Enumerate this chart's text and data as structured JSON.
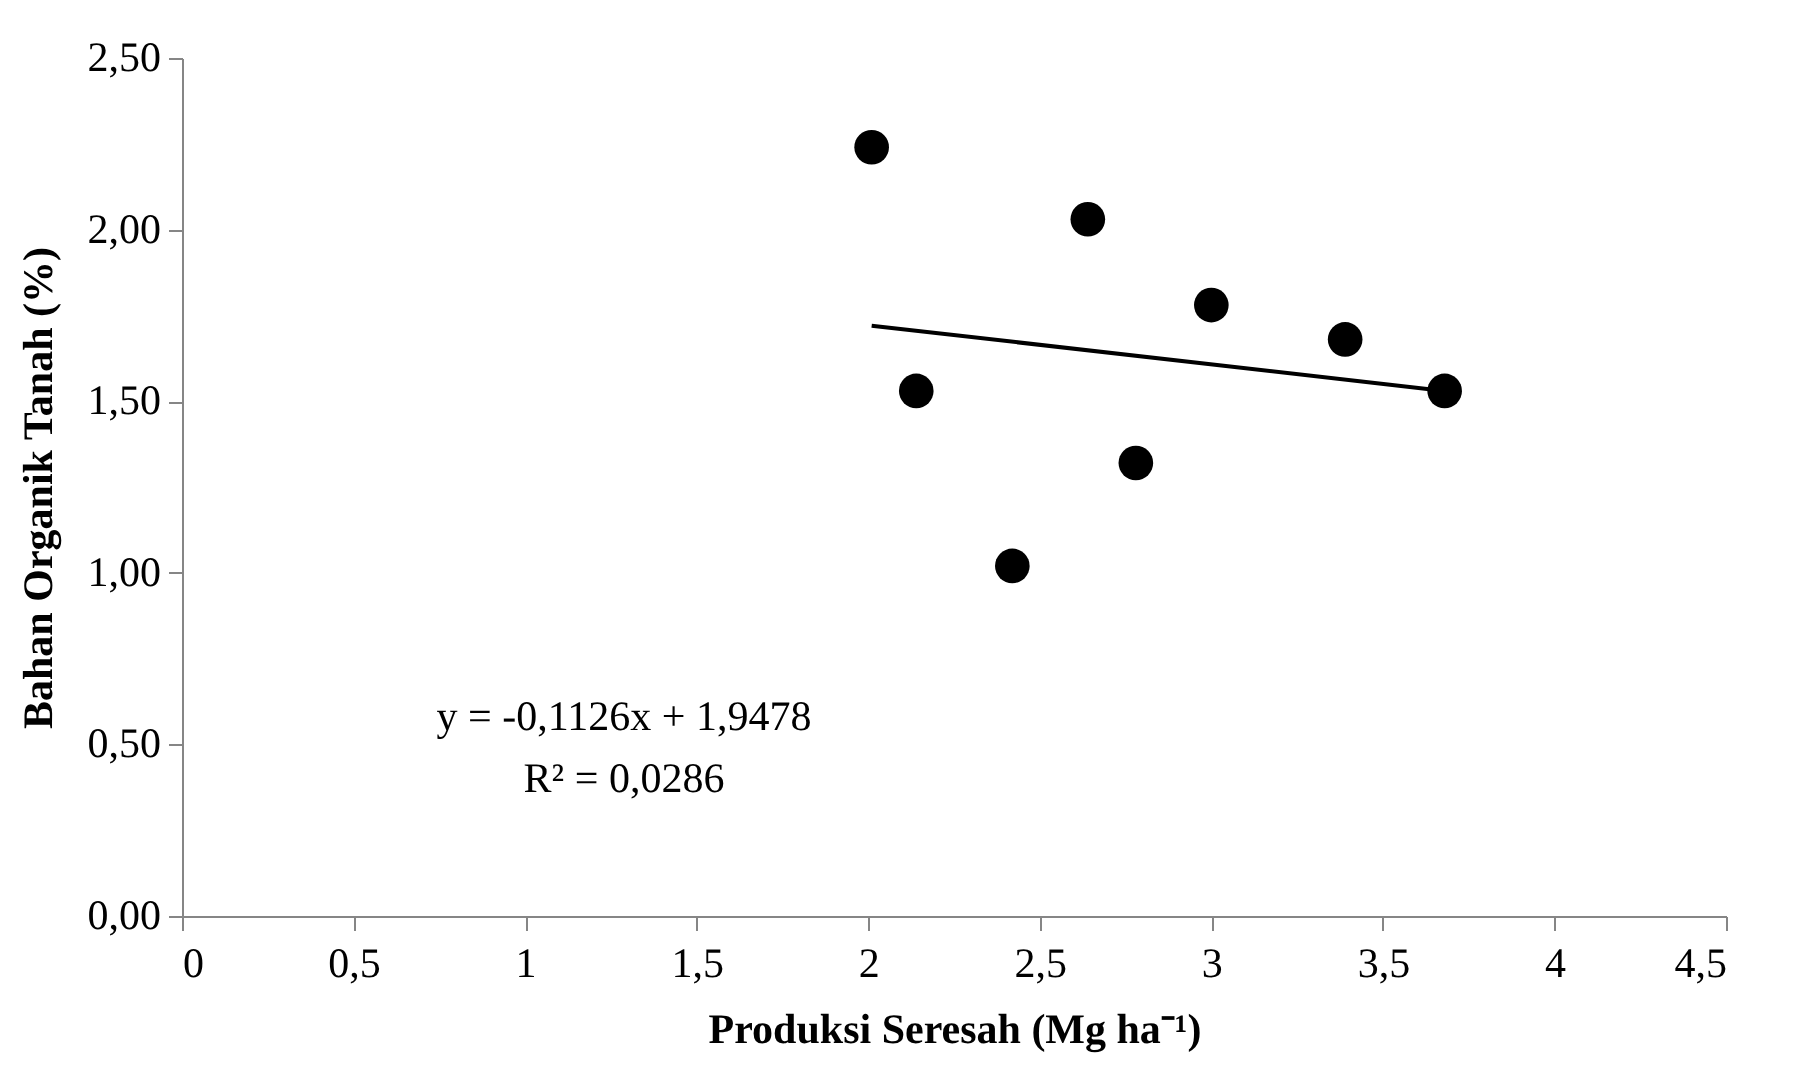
{
  "chart_data": {
    "type": "scatter",
    "xlabel": "Produksi Seresah (Mg ha⁻¹)",
    "ylabel": "Bahan Organik Tanah (%)",
    "x": [
      2.01,
      2.14,
      2.42,
      2.64,
      2.78,
      3.0,
      3.39,
      3.68
    ],
    "series": [
      {
        "color": "#000000",
        "marker": "circle",
        "values": [
          2.24,
          1.53,
          1.02,
          2.03,
          1.32,
          1.78,
          1.68,
          1.53
        ]
      },
      {
        "type": "line",
        "color": "#000000",
        "x": [
          2.01,
          3.68
        ],
        "values": [
          1.72,
          1.53
        ]
      }
    ],
    "xlim": [
      0,
      4.5
    ],
    "xticks": [
      0,
      {
        "value": 0.5,
        "label": "0,5"
      },
      1,
      {
        "value": 1.5,
        "label": "1,5"
      },
      2,
      {
        "value": 2.5,
        "label": "2,5"
      },
      3,
      {
        "value": 3.5,
        "label": "3,5"
      },
      4,
      {
        "value": 4.5,
        "label": "4,5"
      }
    ],
    "ylim": [
      0,
      2.5
    ],
    "yticks": [
      {
        "value": 0,
        "label": "0,00"
      },
      {
        "value": 0.5,
        "label": "0,50"
      },
      {
        "value": 1,
        "label": "1,00"
      },
      {
        "value": 1.5,
        "label": "1,50"
      },
      {
        "value": 2,
        "label": "2,00"
      },
      {
        "value": 2.5,
        "label": "2,50"
      }
    ],
    "annotations": [
      "y = -0,1126x + 1,9478",
      "R² = 0,0286"
    ],
    "grid": false
  }
}
